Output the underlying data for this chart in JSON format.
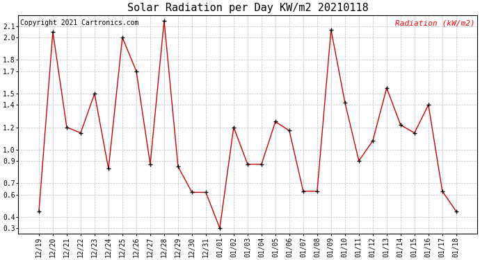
{
  "title": "Solar Radiation per Day KW/m2 20210118",
  "copyright_text": "Copyright 2021 Cartronics.com",
  "legend_label": "Radiation (kW/m2)",
  "dates": [
    "12/19",
    "12/20",
    "12/21",
    "12/22",
    "12/23",
    "12/24",
    "12/25",
    "12/26",
    "12/27",
    "12/28",
    "12/29",
    "12/30",
    "12/31",
    "01/01",
    "01/02",
    "01/03",
    "01/04",
    "01/05",
    "01/06",
    "01/07",
    "01/08",
    "01/09",
    "01/10",
    "01/11",
    "01/12",
    "01/13",
    "01/14",
    "01/15",
    "01/16",
    "01/17",
    "01/18"
  ],
  "values": [
    0.45,
    2.05,
    1.2,
    1.15,
    1.5,
    0.83,
    2.0,
    1.7,
    0.87,
    2.15,
    0.85,
    0.62,
    0.62,
    0.3,
    1.2,
    0.87,
    0.87,
    1.25,
    1.17,
    0.63,
    0.63,
    2.07,
    1.42,
    0.9,
    1.08,
    1.55,
    1.22,
    1.15,
    1.4,
    0.63,
    0.45
  ],
  "ylim": [
    0.25,
    2.2
  ],
  "yticks": [
    0.3,
    0.4,
    0.6,
    0.7,
    0.9,
    1.0,
    1.2,
    1.4,
    1.5,
    1.7,
    1.8,
    2.0,
    2.1
  ],
  "line_color": "#cc0000",
  "marker_color": "#000000",
  "background_color": "#ffffff",
  "grid_color": "#bbbbbb",
  "title_fontsize": 11,
  "copyright_fontsize": 7,
  "legend_fontsize": 8,
  "tick_fontsize": 7
}
